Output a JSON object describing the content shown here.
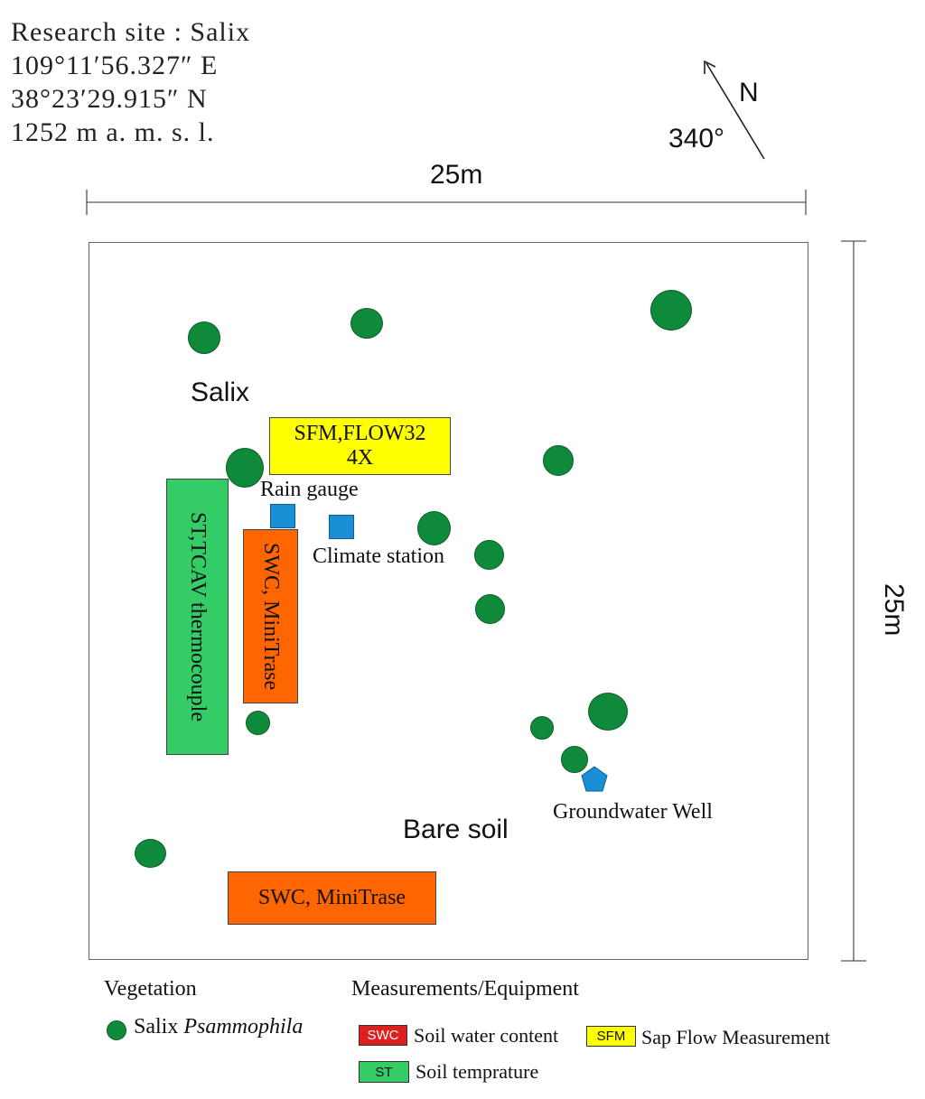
{
  "site": {
    "line1": "Research site : Salix",
    "line2": "109°11′56.327″ E",
    "line3": "38°23′29.915″ N",
    "line4": "1252  m  a. m. s. l."
  },
  "north": {
    "label": "N",
    "angle": "340°"
  },
  "dimensions": {
    "width": "25m",
    "height": "25m"
  },
  "map": {
    "labels": {
      "salix": "Salix",
      "bare_soil": "Bare soil",
      "rain_gauge": "Rain gauge",
      "climate_station": "Climate station",
      "groundwater_well": "Groundwater Well"
    },
    "boxes": {
      "sfm_line1": "SFM,FLOW32",
      "sfm_line2": "4X",
      "st": "ST,TCAV thermocouple",
      "swc_vertical": "SWC, MiniTrase",
      "swc_horizontal": "SWC, MiniTrase"
    }
  },
  "legend": {
    "vegetation_title": "Vegetation",
    "vegetation_item_prefix": "Salix ",
    "vegetation_item_italic": "Psammophila",
    "measurements_title": "Measurements/Equipment",
    "swc_code": "SWC",
    "swc_label": "Soil water content",
    "sfm_code": "SFM",
    "sfm_label": "Sap Flow Measurement",
    "st_code": "ST",
    "st_label": "Soil temprature"
  },
  "colors": {
    "tree": "#0f8a3a",
    "sfm": "#ffff00",
    "swc_box": "#ff6600",
    "swc_legend": "#dd1f1f",
    "st": "#33cc66",
    "equipment": "#1a8fd6"
  }
}
